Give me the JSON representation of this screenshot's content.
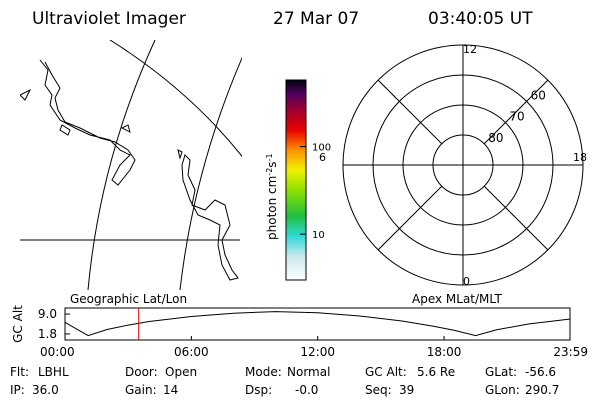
{
  "header": {
    "title": "Ultraviolet Imager",
    "date": "27 Mar 07",
    "time": "03:40:05 UT"
  },
  "colorbar": {
    "label_parts": [
      "photon cm",
      "-2",
      "s",
      "-1"
    ],
    "range": [
      3,
      575
    ],
    "log": true,
    "ticks": [
      10,
      100
    ]
  },
  "polar": {
    "lat_range": [
      90,
      50
    ],
    "lat_rings": [
      80,
      70,
      60
    ],
    "mlt_labels": [
      12,
      6,
      0,
      18
    ]
  },
  "orbit": {
    "left_label": "Geographic Lat/Lon",
    "right_label": "Apex MLat/MLT",
    "ylabel": "GC Alt",
    "ylim": [
      -0.4,
      11.2
    ],
    "yticks": [
      {
        "value": 9.0,
        "label": "9.0"
      },
      {
        "value": 1.8,
        "label": "1.8"
      }
    ],
    "xlim": [
      0,
      23.98
    ],
    "xticks": [
      {
        "value": 0,
        "label": "00:00"
      },
      {
        "value": 6,
        "label": "06:00"
      },
      {
        "value": 12,
        "label": "12:00"
      },
      {
        "value": 18,
        "label": "18:00"
      },
      {
        "value": 23.98,
        "label": "23:59"
      }
    ],
    "x": [
      0,
      0.5,
      1.1,
      2,
      3,
      4,
      6,
      8,
      10,
      12,
      14,
      16,
      17.5,
      18.5,
      19.5,
      20.5,
      22,
      24
    ],
    "values": [
      6.0,
      3.8,
      1.2,
      3.4,
      5.0,
      6.3,
      8.1,
      9.3,
      9.9,
      9.5,
      8.3,
      6.5,
      4.6,
      3.1,
      1.2,
      3.3,
      5.4,
      7.2
    ],
    "marker_hour": 3.5,
    "marker_color": "#e00000"
  },
  "info": [
    [
      {
        "label": "Flt:",
        "value": "LBHL"
      },
      {
        "label": "Door:",
        "value": "Open"
      },
      {
        "label": "Mode:",
        "value": "Normal"
      },
      {
        "label": "GC Alt:",
        "value": "5.6 Re"
      },
      {
        "label": "GLat:",
        "value": "-56.6"
      }
    ],
    [
      {
        "label": "IP:",
        "value": "36.0"
      },
      {
        "label": "Gain:",
        "value": "14"
      },
      {
        "label": "Dsp:",
        "value": "-0.0"
      },
      {
        "label": "Seq:",
        "value": "39"
      },
      {
        "label": "GLon:",
        "value": "290.7"
      }
    ]
  ]
}
